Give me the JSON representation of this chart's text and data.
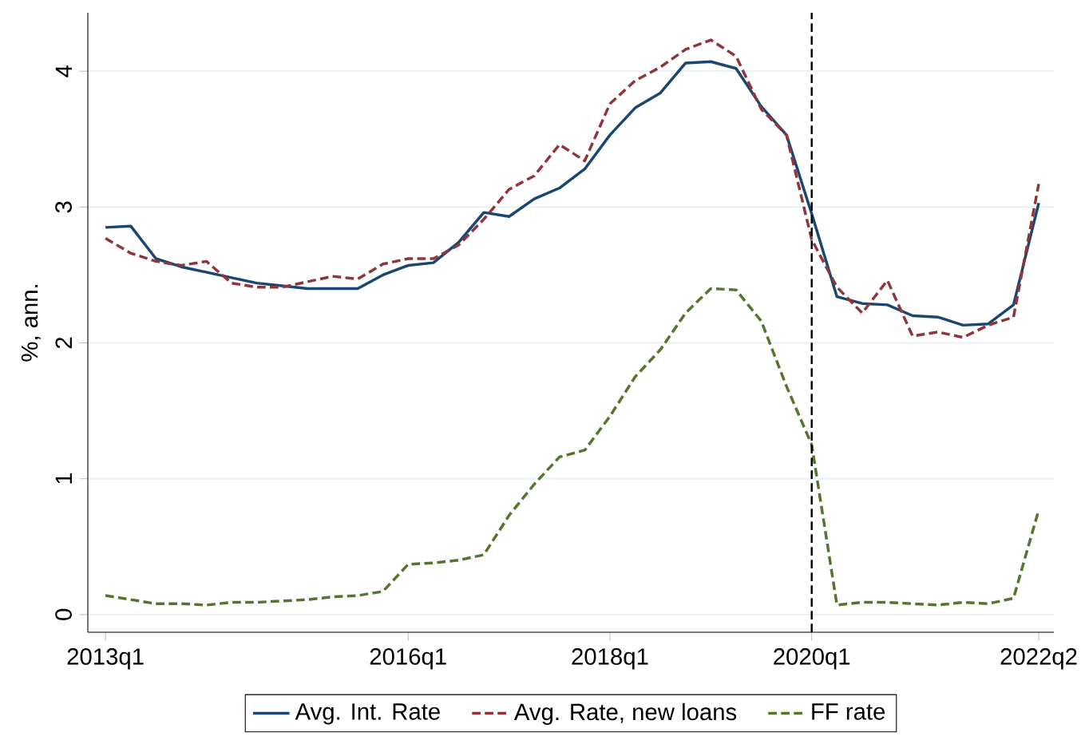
{
  "chart_data": {
    "type": "line",
    "ylabel": "%, ann.",
    "categories": [
      "2013q1",
      null,
      null,
      null,
      null,
      null,
      null,
      null,
      null,
      null,
      null,
      null,
      "2016q1",
      null,
      null,
      null,
      null,
      null,
      null,
      null,
      "2018q1",
      null,
      null,
      null,
      null,
      null,
      null,
      null,
      "2020q1",
      null,
      null,
      null,
      null,
      null,
      null,
      null,
      null,
      "2022q2"
    ],
    "series": [
      {
        "name": "Avg. Int. Rate",
        "color": "#1a476f",
        "line_style": "solid",
        "values": [
          2.85,
          2.86,
          2.62,
          2.56,
          2.52,
          2.48,
          2.44,
          2.42,
          2.4,
          2.4,
          2.4,
          2.5,
          2.57,
          2.59,
          2.74,
          2.96,
          2.93,
          3.06,
          3.14,
          3.28,
          3.53,
          3.73,
          3.84,
          4.06,
          4.07,
          4.02,
          3.74,
          3.53,
          2.95,
          2.34,
          2.29,
          2.28,
          2.2,
          2.19,
          2.13,
          2.14,
          2.28,
          3.03
        ]
      },
      {
        "name": "Avg. Rate, new loans",
        "color": "#90353b",
        "line_style": "dashed",
        "values": [
          2.77,
          2.66,
          2.6,
          2.57,
          2.6,
          2.44,
          2.41,
          2.41,
          2.45,
          2.49,
          2.47,
          2.58,
          2.62,
          2.62,
          2.72,
          2.91,
          3.13,
          3.23,
          3.46,
          3.34,
          3.76,
          3.93,
          4.03,
          4.16,
          4.23,
          4.11,
          3.72,
          3.53,
          2.76,
          2.41,
          2.22,
          2.46,
          2.05,
          2.08,
          2.04,
          2.13,
          2.19,
          3.17
        ]
      },
      {
        "name": "FF rate",
        "color": "#55752f",
        "line_style": "dashed",
        "values": [
          0.14,
          0.11,
          0.08,
          0.08,
          0.07,
          0.09,
          0.09,
          0.1,
          0.11,
          0.13,
          0.14,
          0.17,
          0.37,
          0.38,
          0.4,
          0.44,
          0.73,
          0.96,
          1.16,
          1.21,
          1.46,
          1.75,
          1.95,
          2.22,
          2.4,
          2.39,
          2.16,
          1.68,
          1.25,
          0.07,
          0.09,
          0.09,
          0.08,
          0.07,
          0.09,
          0.08,
          0.12,
          0.77
        ]
      }
    ],
    "ylim": [
      -0.13,
      4.43
    ],
    "yticks": [
      0,
      1,
      2,
      3,
      4
    ],
    "ref_lines": [
      {
        "axis": "x",
        "value": "2020q1",
        "color": "#000000",
        "line_style": "dashed"
      }
    ],
    "grid": "y",
    "legend": "bottom",
    "marker": "none"
  }
}
